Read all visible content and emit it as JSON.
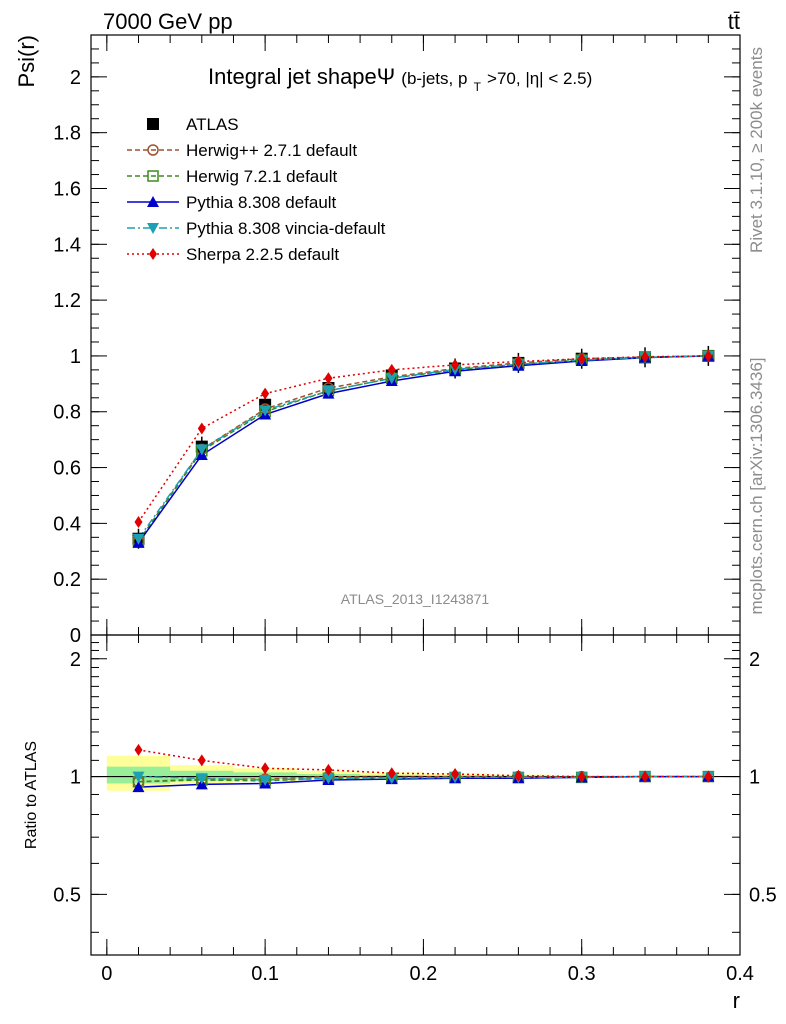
{
  "header": {
    "energy_label": "7000 GeV pp",
    "process_label": "tt̄"
  },
  "side_labels": {
    "rivet": "Rivet 3.1.10, ≥ 200k events",
    "mcplots": "mcplots.cern.ch [arXiv:1306.3436]"
  },
  "analysis_id": "ATLAS_2013_I1243871",
  "chart_data": [
    {
      "type": "line",
      "title_main": "Integral jet shapeΨ",
      "title_cut_1": "(b-jets, p",
      "title_cut_sub": "T",
      "title_cut_2": ">70, |η| < 2.5)",
      "ylabel": "Psi(r)",
      "xlabel": "r",
      "xlim": [
        -0.01,
        0.4
      ],
      "ylim": [
        0,
        2.15
      ],
      "y_ticks": [
        "0",
        "0.2",
        "0.4",
        "0.6",
        "0.8",
        "1",
        "1.2",
        "1.4",
        "1.6",
        "1.8",
        "2"
      ],
      "x": [
        0.02,
        0.06,
        0.1,
        0.14,
        0.18,
        0.22,
        0.26,
        0.3,
        0.34,
        0.38
      ],
      "data": {
        "name": "ATLAS",
        "values": [
          0.345,
          0.675,
          0.825,
          0.885,
          0.93,
          0.955,
          0.975,
          0.99,
          0.995,
          1.0
        ],
        "color": "#000000"
      },
      "series": [
        {
          "name": "Herwig++ 2.7.1 default",
          "values": [
            0.335,
            0.665,
            0.81,
            0.885,
            0.925,
            0.955,
            0.975,
            0.99,
            0.996,
            1.0
          ],
          "color": "#a0522d",
          "dash": "5,3",
          "marker": "circle-open"
        },
        {
          "name": "Herwig 7.2.1 default",
          "values": [
            0.335,
            0.66,
            0.8,
            0.875,
            0.92,
            0.95,
            0.97,
            0.985,
            0.995,
            1.0
          ],
          "color": "#3c8c1e",
          "dash": "5,3",
          "marker": "square-open"
        },
        {
          "name": "Pythia 8.308 default",
          "values": [
            0.33,
            0.645,
            0.79,
            0.865,
            0.91,
            0.945,
            0.965,
            0.982,
            0.994,
            1.0
          ],
          "color": "#0000cc",
          "dash": "",
          "marker": "triangle-up"
        },
        {
          "name": "Pythia 8.308 vincia-default",
          "values": [
            0.345,
            0.665,
            0.805,
            0.875,
            0.92,
            0.952,
            0.97,
            0.985,
            0.995,
            1.0
          ],
          "color": "#1ea0b4",
          "dash": "8,3,2,3",
          "marker": "triangle-down"
        },
        {
          "name": "Sherpa 2.2.5 default",
          "values": [
            0.405,
            0.74,
            0.865,
            0.92,
            0.95,
            0.968,
            0.98,
            0.99,
            0.997,
            1.0
          ],
          "color": "#e00000",
          "dash": "2,3",
          "marker": "diamond"
        }
      ]
    },
    {
      "type": "line",
      "ylabel": "Ratio to ATLAS",
      "xlabel": "r",
      "xlim": [
        -0.01,
        0.4
      ],
      "ylim": [
        0.35,
        2.3
      ],
      "y_ticks": [
        "0.5",
        "1",
        "2"
      ],
      "x_ticks": [
        "0",
        "0.1",
        "0.2",
        "0.3",
        "0.4"
      ],
      "x": [
        0.02,
        0.06,
        0.1,
        0.14,
        0.18,
        0.22,
        0.26,
        0.3,
        0.34,
        0.38
      ],
      "band_yellow": {
        "low": [
          0.92,
          0.955,
          0.97,
          0.98,
          0.985,
          0.99,
          0.993,
          0.996,
          0.998,
          1.0
        ],
        "high": [
          1.13,
          1.07,
          1.05,
          1.035,
          1.025,
          1.02,
          1.012,
          1.006,
          1.003,
          1.0
        ]
      },
      "band_green": {
        "low": [
          0.96,
          0.975,
          0.985,
          0.99,
          0.993,
          0.995,
          0.997,
          0.998,
          0.999,
          1.0
        ],
        "high": [
          1.06,
          1.035,
          1.025,
          1.015,
          1.01,
          1.007,
          1.005,
          1.003,
          1.001,
          1.0
        ]
      },
      "series": [
        {
          "name": "Herwig++ 2.7.1 default",
          "values": [
            0.97,
            0.985,
            0.985,
            1.0,
            0.995,
            1.0,
            1.0,
            1.0,
            1.0,
            1.0
          ],
          "color": "#a0522d",
          "dash": "5,3",
          "marker": "circle-open"
        },
        {
          "name": "Herwig 7.2.1 default",
          "values": [
            0.97,
            0.98,
            0.975,
            0.99,
            0.99,
            0.995,
            0.995,
            0.995,
            1.0,
            1.0
          ],
          "color": "#3c8c1e",
          "dash": "5,3",
          "marker": "square-open"
        },
        {
          "name": "Pythia 8.308 default",
          "values": [
            0.94,
            0.955,
            0.96,
            0.98,
            0.985,
            0.99,
            0.99,
            0.995,
            1.0,
            1.0
          ],
          "color": "#0000cc",
          "dash": "",
          "marker": "triangle-up"
        },
        {
          "name": "Pythia 8.308 vincia-default",
          "values": [
            1.0,
            0.99,
            0.98,
            0.99,
            0.99,
            0.995,
            0.995,
            0.995,
            1.0,
            1.0
          ],
          "color": "#1ea0b4",
          "dash": "8,3,2,3",
          "marker": "triangle-down"
        },
        {
          "name": "Sherpa 2.2.5 default",
          "values": [
            1.17,
            1.1,
            1.05,
            1.04,
            1.02,
            1.015,
            1.005,
            1.0,
            1.0,
            1.0
          ],
          "color": "#e00000",
          "dash": "2,3",
          "marker": "diamond"
        }
      ]
    }
  ]
}
